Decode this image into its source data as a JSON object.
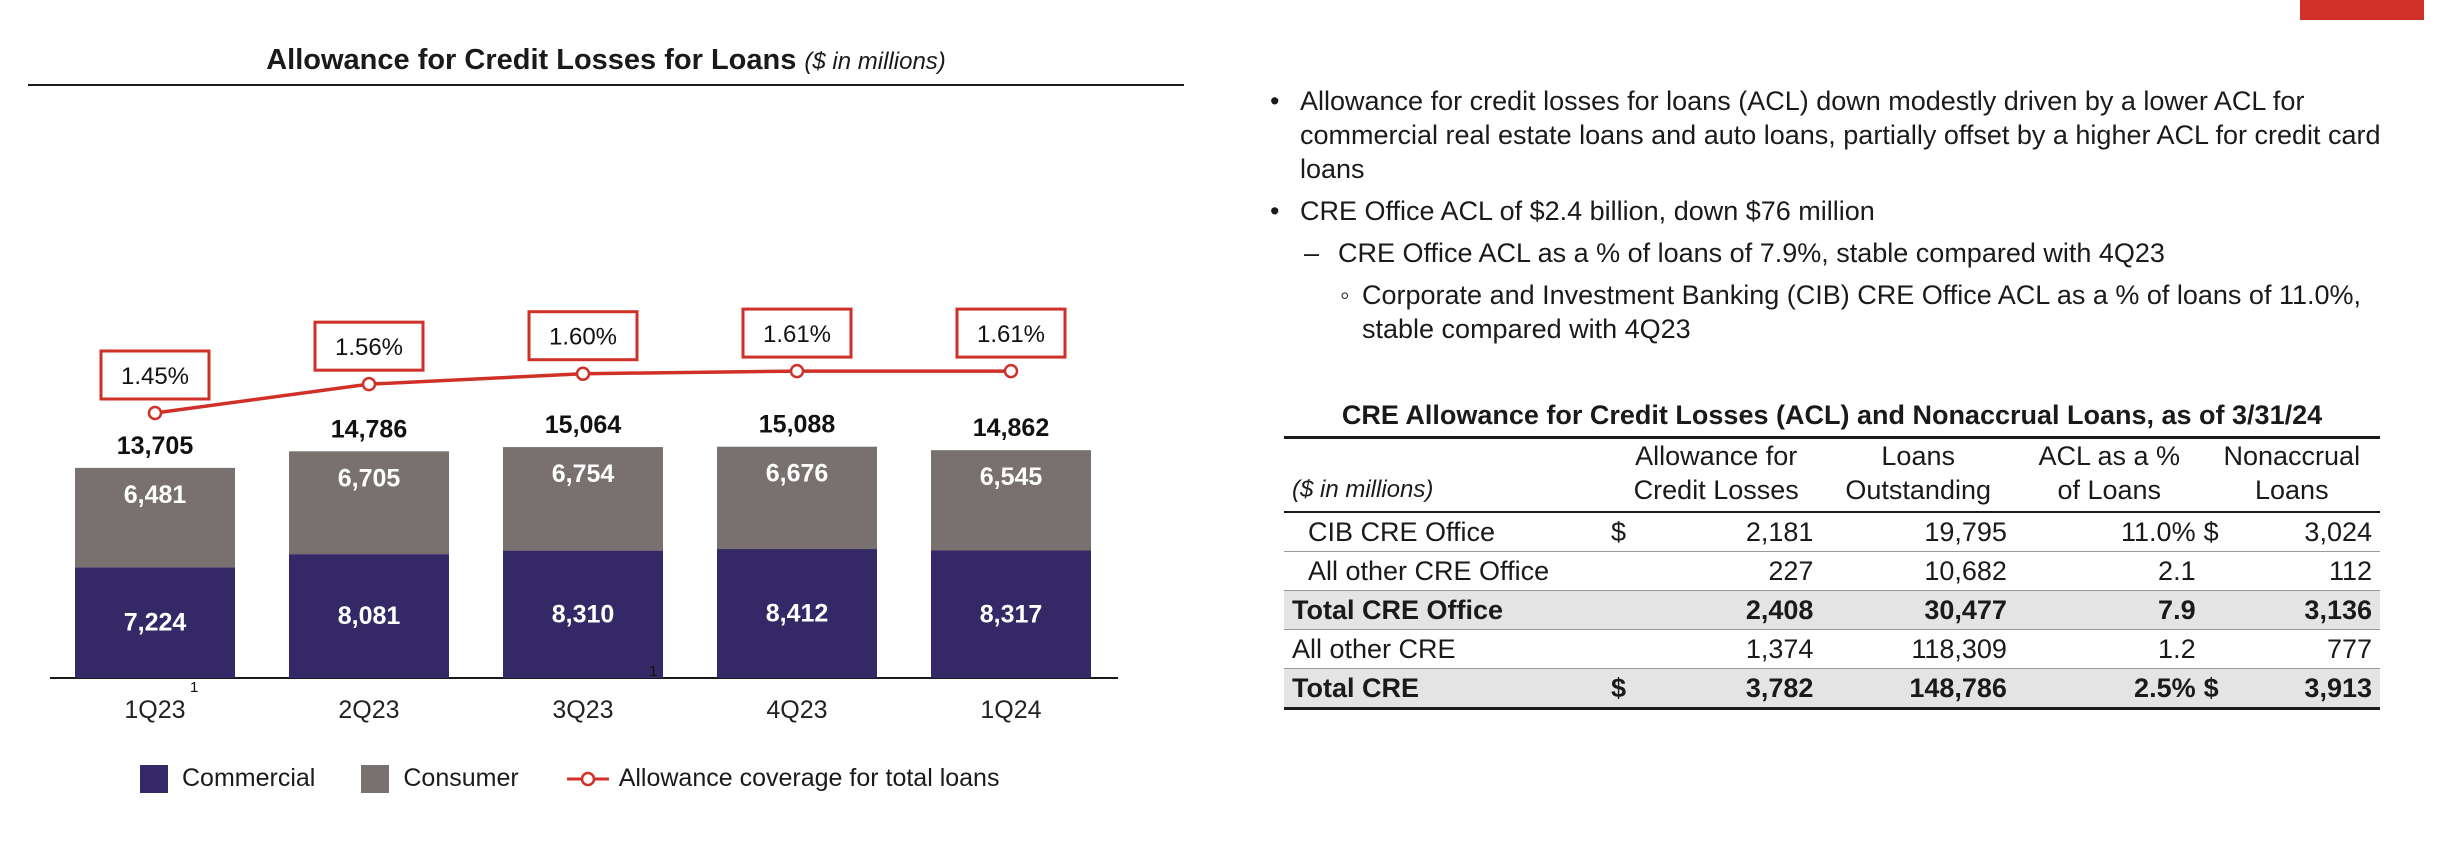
{
  "colors": {
    "commercial": "#342966",
    "consumer": "#787170",
    "line": "#d03027",
    "accent": "#d03027"
  },
  "chart": {
    "title": "Allowance for Credit Losses for Loans",
    "subtitle": "($ in millions)",
    "footnote_marks": [
      "1",
      "1"
    ],
    "legend": {
      "commercial": "Commercial",
      "consumer": "Consumer",
      "coverage": "Allowance coverage for total loans"
    }
  },
  "chart_data": {
    "type": "bar",
    "stacked": true,
    "categories": [
      "1Q23",
      "2Q23",
      "3Q23",
      "4Q23",
      "1Q24"
    ],
    "series": [
      {
        "name": "Commercial",
        "values": [
          7224,
          8081,
          8310,
          8412,
          8317
        ]
      },
      {
        "name": "Consumer",
        "values": [
          6481,
          6705,
          6754,
          6676,
          6545
        ]
      }
    ],
    "totals": [
      13705,
      14786,
      15064,
      15088,
      14862
    ],
    "totals_labels": [
      "13,705",
      "14,786",
      "15,064",
      "15,088",
      "14,862"
    ],
    "commercial_labels": [
      "7,224",
      "8,081",
      "8,310",
      "8,412",
      "8,317"
    ],
    "consumer_labels": [
      "6,481",
      "6,705",
      "6,754",
      "6,676",
      "6,545"
    ],
    "line_series": {
      "name": "Allowance coverage for total loans",
      "values": [
        1.45,
        1.56,
        1.6,
        1.61,
        1.61
      ],
      "labels": [
        "1.45%",
        "1.56%",
        "1.60%",
        "1.61%",
        "1.61%"
      ]
    },
    "title": "Allowance for Credit Losses for Loans",
    "subtitle": "($ in millions)",
    "legend_position": "bottom",
    "grid": false
  },
  "bullets": {
    "b1": "Allowance for credit losses for loans (ACL) down modestly driven by a lower ACL for commercial real estate loans and auto loans, partially offset by a higher ACL for credit card loans",
    "b2": "CRE Office ACL of $2.4 billion, down $76 million",
    "b3": "CRE Office ACL as a % of loans of 7.9%, stable compared with 4Q23",
    "b4": "Corporate and Investment Banking (CIB) CRE Office ACL as a % of loans of 11.0%, stable compared with 4Q23"
  },
  "table": {
    "title": "CRE Allowance for Credit Losses (ACL) and Nonaccrual Loans, as of 3/31/24",
    "unit_label": "($ in millions)",
    "headers": {
      "acl_l1": "Allowance for",
      "acl_l2": "Credit Losses",
      "loans_l1": "Loans",
      "loans_l2": "Outstanding",
      "pct_l1": "ACL as a %",
      "pct_l2": "of Loans",
      "nonaccrual_l1": "Nonaccrual",
      "nonaccrual_l2": "Loans"
    },
    "rows": [
      {
        "label": "CIB CRE Office",
        "cur1": "$",
        "acl": "2,181",
        "loans": "19,795",
        "pct": "11.0%",
        "cur2": "$",
        "nonaccrual": "3,024"
      },
      {
        "label": "All other CRE Office",
        "cur1": "",
        "acl": "227",
        "loans": "10,682",
        "pct": "2.1",
        "cur2": "",
        "nonaccrual": "112"
      },
      {
        "label": "Total CRE Office",
        "cur1": "",
        "acl": "2,408",
        "loans": "30,477",
        "pct": "7.9",
        "cur2": "",
        "nonaccrual": "3,136"
      },
      {
        "label": "All other CRE",
        "cur1": "",
        "acl": "1,374",
        "loans": "118,309",
        "pct": "1.2",
        "cur2": "",
        "nonaccrual": "777"
      },
      {
        "label": "Total CRE",
        "cur1": "$",
        "acl": "3,782",
        "loans": "148,786",
        "pct": "2.5%",
        "cur2": "$",
        "nonaccrual": "3,913"
      }
    ]
  }
}
